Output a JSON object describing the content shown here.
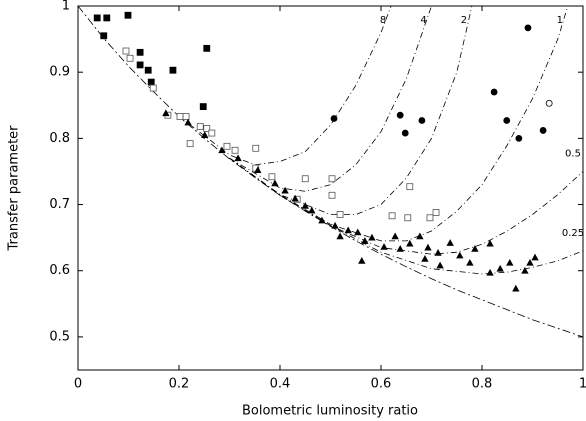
{
  "chart_data": {
    "type": "scatter",
    "x_label": "Bolometric luminosity ratio",
    "y_label": "Transfer parameter",
    "xlim": [
      0,
      1
    ],
    "ylim": [
      0.45,
      1
    ],
    "xticks": [
      0,
      0.2,
      0.4,
      0.6,
      0.8,
      1
    ],
    "yticks": [
      0.5,
      0.6,
      0.7,
      0.8,
      0.9,
      1
    ],
    "grid": false,
    "series": [
      {
        "marker": "square",
        "filled": true,
        "color": "#000000",
        "x": [
          0.038,
          0.057,
          0.099,
          0.051,
          0.123,
          0.123,
          0.139,
          0.145,
          0.188,
          0.255,
          0.248
        ],
        "values": [
          0.982,
          0.982,
          0.986,
          0.955,
          0.93,
          0.911,
          0.903,
          0.885,
          0.903,
          0.936,
          0.848
        ]
      },
      {
        "marker": "square",
        "filled": false,
        "color": "#555555",
        "x": [
          0.095,
          0.103,
          0.149,
          0.178,
          0.202,
          0.214,
          0.222,
          0.242,
          0.255,
          0.265,
          0.295,
          0.311,
          0.352,
          0.384,
          0.45,
          0.503,
          0.503,
          0.434,
          0.657,
          0.519,
          0.622,
          0.653,
          0.697,
          0.709,
          0.352
        ],
        "values": [
          0.932,
          0.921,
          0.876,
          0.835,
          0.833,
          0.833,
          0.792,
          0.818,
          0.815,
          0.808,
          0.788,
          0.782,
          0.785,
          0.742,
          0.739,
          0.739,
          0.714,
          0.708,
          0.727,
          0.685,
          0.683,
          0.68,
          0.68,
          0.688,
          0.755
        ]
      },
      {
        "marker": "triangle",
        "filled": true,
        "color": "#000000",
        "x": [
          0.174,
          0.218,
          0.251,
          0.285,
          0.317,
          0.356,
          0.39,
          0.41,
          0.43,
          0.45,
          0.463,
          0.483,
          0.509,
          0.535,
          0.554,
          0.568,
          0.582,
          0.606,
          0.628,
          0.638,
          0.657,
          0.677,
          0.693,
          0.713,
          0.737,
          0.756,
          0.776,
          0.786,
          0.816,
          0.836,
          0.855,
          0.867,
          0.885,
          0.895,
          0.905,
          0.562,
          0.519,
          0.687,
          0.717,
          0.816
        ],
        "values": [
          0.838,
          0.824,
          0.805,
          0.782,
          0.77,
          0.752,
          0.732,
          0.721,
          0.709,
          0.698,
          0.691,
          0.676,
          0.668,
          0.661,
          0.658,
          0.645,
          0.65,
          0.636,
          0.652,
          0.633,
          0.641,
          0.652,
          0.635,
          0.627,
          0.642,
          0.623,
          0.612,
          0.633,
          0.641,
          0.603,
          0.612,
          0.573,
          0.6,
          0.612,
          0.62,
          0.615,
          0.652,
          0.618,
          0.608,
          0.597
        ]
      },
      {
        "marker": "circle",
        "filled": true,
        "color": "#000000",
        "x": [
          0.507,
          0.638,
          0.648,
          0.681,
          0.824,
          0.849,
          0.873,
          0.921,
          0.891
        ],
        "values": [
          0.83,
          0.835,
          0.808,
          0.827,
          0.87,
          0.827,
          0.8,
          0.812,
          0.967
        ]
      },
      {
        "marker": "circle",
        "filled": false,
        "color": "#000000",
        "x": [
          0.933
        ],
        "values": [
          0.853
        ]
      }
    ],
    "curves": [
      {
        "name": "8",
        "x": [
          0.2,
          0.3,
          0.35,
          0.4,
          0.45,
          0.5,
          0.55,
          0.6,
          0.62
        ],
        "values": [
          0.833,
          0.775,
          0.76,
          0.765,
          0.78,
          0.82,
          0.88,
          0.96,
          1.0
        ]
      },
      {
        "name": "4",
        "x": [
          0.3,
          0.4,
          0.45,
          0.5,
          0.55,
          0.6,
          0.65,
          0.7
        ],
        "values": [
          0.77,
          0.725,
          0.72,
          0.73,
          0.76,
          0.81,
          0.89,
          1.0
        ]
      },
      {
        "name": "2",
        "x": [
          0.3,
          0.4,
          0.5,
          0.55,
          0.6,
          0.65,
          0.7,
          0.75,
          0.78
        ],
        "values": [
          0.77,
          0.715,
          0.685,
          0.685,
          0.7,
          0.74,
          0.8,
          0.9,
          1.0
        ]
      },
      {
        "name": "1",
        "x": [
          0.3,
          0.4,
          0.5,
          0.6,
          0.65,
          0.7,
          0.75,
          0.8,
          0.85,
          0.9,
          0.95,
          0.97
        ],
        "values": [
          0.77,
          0.715,
          0.67,
          0.645,
          0.645,
          0.66,
          0.69,
          0.73,
          0.79,
          0.86,
          0.95,
          1.0
        ]
      },
      {
        "name": "0.5",
        "x": [
          0.3,
          0.4,
          0.5,
          0.6,
          0.7,
          0.75,
          0.8,
          0.85,
          0.9,
          0.95,
          1.0
        ],
        "values": [
          0.77,
          0.714,
          0.668,
          0.635,
          0.625,
          0.628,
          0.64,
          0.66,
          0.685,
          0.715,
          0.75
        ]
      },
      {
        "name": "0.25",
        "x": [
          0.3,
          0.4,
          0.5,
          0.6,
          0.7,
          0.8,
          0.85,
          0.9,
          0.95,
          1.0
        ],
        "values": [
          0.77,
          0.714,
          0.668,
          0.628,
          0.603,
          0.595,
          0.598,
          0.605,
          0.615,
          0.63
        ]
      }
    ],
    "envelope": {
      "x": [
        0,
        0.05,
        0.1,
        0.15,
        0.2,
        0.25,
        0.3,
        0.35,
        0.4,
        0.45,
        0.5,
        0.55,
        0.6,
        0.65,
        0.7,
        0.75,
        0.8,
        0.85,
        0.9,
        0.95,
        1
      ],
      "values": [
        1,
        0.952,
        0.909,
        0.87,
        0.833,
        0.8,
        0.769,
        0.741,
        0.714,
        0.69,
        0.667,
        0.645,
        0.625,
        0.606,
        0.588,
        0.571,
        0.556,
        0.541,
        0.526,
        0.513,
        0.5
      ]
    }
  }
}
